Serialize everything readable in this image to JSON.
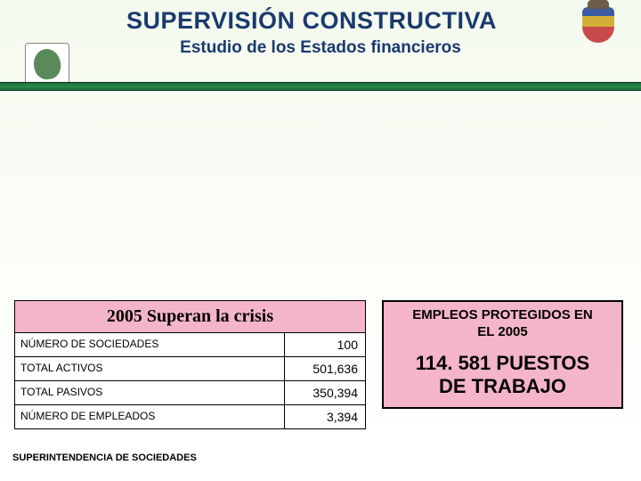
{
  "header": {
    "title": "SUPERVISIÓN CONSTRUCTIVA",
    "subtitle": "Estudio de los Estados financieros"
  },
  "table": {
    "header": "2005 Superan la crisis",
    "header_bg": "#f5b5c8",
    "rows": [
      {
        "label": "NÚMERO DE SOCIEDADES",
        "value": "100"
      },
      {
        "label": "TOTAL ACTIVOS",
        "value": "501,636"
      },
      {
        "label": "TOTAL PASIVOS",
        "value": "350,394"
      },
      {
        "label": "NÚMERO DE EMPLEADOS",
        "value": "3,394"
      }
    ]
  },
  "callout": {
    "line1": "EMPLEOS PROTEGIDOS EN",
    "line2": "EL 2005",
    "big1": "114. 581 PUESTOS",
    "big2": "DE TRABAJO",
    "bg": "#f5b5c8"
  },
  "footer": "SUPERINTENDENCIA DE SOCIEDADES",
  "colors": {
    "title_color": "#1a3a6e",
    "divider_green": "#2a8a4a"
  }
}
